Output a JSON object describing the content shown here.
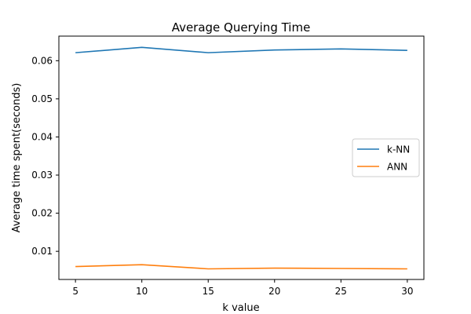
{
  "chart_data": {
    "type": "line",
    "title": "Average Querying Time",
    "xlabel": "k value",
    "ylabel": "Average time spent(seconds)",
    "x": [
      5,
      10,
      15,
      20,
      25,
      30
    ],
    "xticks": [
      "5",
      "10",
      "15",
      "20",
      "25",
      "30"
    ],
    "yticks": [
      "0.01",
      "0.02",
      "0.03",
      "0.04",
      "0.05",
      "0.06"
    ],
    "xlim": [
      3.75,
      31.25
    ],
    "ylim": [
      0.00262,
      0.06645
    ],
    "legend_position": "center-right",
    "grid": false,
    "series": [
      {
        "name": "k-NN",
        "color": "#1f77b4",
        "values": [
          0.0621,
          0.0635,
          0.0621,
          0.0628,
          0.0631,
          0.0627
        ]
      },
      {
        "name": "ANN",
        "color": "#ff7f0e",
        "values": [
          0.006,
          0.0065,
          0.0054,
          0.0056,
          0.0055,
          0.0054
        ]
      }
    ]
  }
}
